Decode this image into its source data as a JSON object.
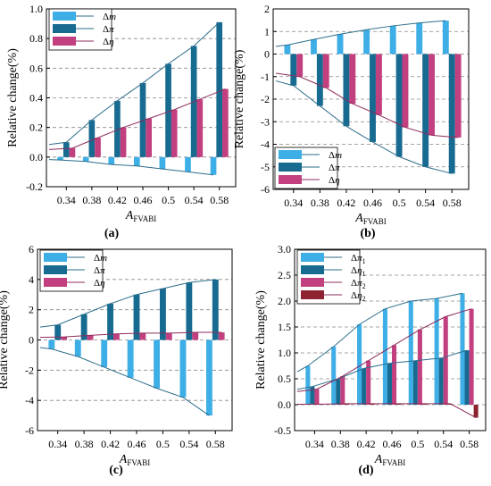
{
  "colors": {
    "dm": "#3eaee6",
    "dpi": "#176a90",
    "deta": "#c2407f",
    "deta2": "#8e2230",
    "dpi_line": "#2d6e8a",
    "deta_line": "#8d2c5c",
    "dm_line": "#2d6e8a"
  },
  "chart_data": [
    {
      "id": "a",
      "type": "bar",
      "panel_label": "(a)",
      "ylabel": "Relative change(%)",
      "xlabel_main": "A",
      "xlabel_sub": "FVABI",
      "categories": [
        "0.34",
        "0.38",
        "0.42",
        "0.46",
        "0.5",
        "0.54",
        "0.58"
      ],
      "ylim": [
        -0.2,
        1.0
      ],
      "yticks": [
        -0.2,
        0.0,
        0.2,
        0.4,
        0.6,
        0.8,
        1.0
      ],
      "ytick_labels": [
        "-0.2",
        "0.0",
        "0.2",
        "0.4",
        "0.6",
        "0.8",
        "1.0"
      ],
      "grid": "dashed",
      "legend": "top-left",
      "series": [
        {
          "name": "Δm",
          "sym": "m",
          "sub": "",
          "color": "dm",
          "line": "dm_line",
          "values": [
            -0.02,
            -0.03,
            -0.05,
            -0.06,
            -0.08,
            -0.1,
            -0.12
          ]
        },
        {
          "name": "Δπ",
          "sym": "π",
          "sub": "",
          "color": "dpi",
          "line": "dpi_line",
          "values": [
            0.1,
            0.25,
            0.38,
            0.5,
            0.63,
            0.75,
            0.91
          ]
        },
        {
          "name": "Δη",
          "sym": "η",
          "sub": "",
          "color": "deta",
          "line": "deta_line",
          "values": [
            0.06,
            0.13,
            0.2,
            0.26,
            0.32,
            0.39,
            0.46
          ]
        }
      ]
    },
    {
      "id": "b",
      "type": "bar",
      "panel_label": "(b)",
      "ylabel": "Relative change(%)",
      "xlabel_main": "A",
      "xlabel_sub": "FVABI",
      "categories": [
        "0.34",
        "0.38",
        "0.42",
        "0.46",
        "0.5",
        "0.54",
        "0.58"
      ],
      "ylim": [
        -6,
        2
      ],
      "yticks": [
        -6,
        -5,
        -4,
        -3,
        -2,
        -1,
        0,
        1,
        2
      ],
      "ytick_labels": [
        "-6",
        "-5",
        "-4",
        "-3",
        "-2",
        "-1",
        "0",
        "1",
        "2"
      ],
      "grid": "dashed",
      "legend": "bottom-left",
      "series": [
        {
          "name": "Δm",
          "sym": "m",
          "sub": "",
          "color": "dm",
          "line": "dm_line",
          "values": [
            0.4,
            0.65,
            0.88,
            1.08,
            1.25,
            1.38,
            1.48
          ]
        },
        {
          "name": "Δπ",
          "sym": "π",
          "sub": "",
          "color": "dpi",
          "line": "dpi_line",
          "values": [
            -1.4,
            -2.3,
            -3.2,
            -3.9,
            -4.55,
            -5.0,
            -5.3
          ]
        },
        {
          "name": "Δη",
          "sym": "η",
          "sub": "",
          "color": "deta",
          "line": "deta_line",
          "values": [
            -1.0,
            -1.5,
            -2.2,
            -2.7,
            -3.25,
            -3.6,
            -3.7
          ]
        }
      ]
    },
    {
      "id": "c",
      "type": "bar",
      "panel_label": "(c)",
      "ylabel": "Relative change(%)",
      "xlabel_main": "A",
      "xlabel_sub": "FVABI",
      "categories": [
        "0.34",
        "0.38",
        "0.42",
        "0.46",
        "0.5",
        "0.54",
        "0.58"
      ],
      "ylim": [
        -6,
        6
      ],
      "yticks": [
        -6,
        -4,
        -2,
        0,
        2,
        4,
        6
      ],
      "ytick_labels": [
        "-6",
        "-4",
        "-2",
        "0",
        "2",
        "4",
        "6"
      ],
      "grid": "dashed",
      "legend": "top-left",
      "series": [
        {
          "name": "Δm",
          "sym": "m",
          "sub": "",
          "color": "dm",
          "line": "dm_line",
          "values": [
            -0.6,
            -1.1,
            -1.8,
            -2.5,
            -3.2,
            -3.8,
            -5.0
          ]
        },
        {
          "name": "Δπ",
          "sym": "π",
          "sub": "",
          "color": "dpi",
          "line": "dpi_line",
          "values": [
            1.0,
            1.7,
            2.4,
            3.0,
            3.4,
            3.8,
            4.0
          ]
        },
        {
          "name": "Δη",
          "sym": "η",
          "sub": "",
          "color": "deta",
          "line": "deta_line",
          "values": [
            0.2,
            0.3,
            0.4,
            0.45,
            0.45,
            0.5,
            0.5
          ]
        }
      ]
    },
    {
      "id": "d",
      "type": "bar",
      "panel_label": "(d)",
      "ylabel": "Relative change(%)",
      "xlabel_main": "A",
      "xlabel_sub": "FVABI",
      "categories": [
        "0.34",
        "0.38",
        "0.42",
        "0.46",
        "0.5",
        "0.54",
        "0.58"
      ],
      "ylim": [
        -0.5,
        3.0
      ],
      "yticks": [
        -0.5,
        0.0,
        0.5,
        1.0,
        1.5,
        2.0,
        2.5,
        3.0
      ],
      "ytick_labels": [
        "-0.5",
        "0.0",
        "0.5",
        "1.0",
        "1.5",
        "2.0",
        "2.5",
        "3.0"
      ],
      "grid": "dashed",
      "legend": "top-left",
      "series": [
        {
          "name": "Δπ1",
          "sym": "π",
          "sub": "1",
          "color": "dm",
          "line": "dm_line",
          "values": [
            0.75,
            1.12,
            1.55,
            1.85,
            2.0,
            2.05,
            2.15
          ]
        },
        {
          "name": "Δη1",
          "sym": "η",
          "sub": "1",
          "color": "dpi",
          "line": "dpi_line",
          "values": [
            0.35,
            0.5,
            0.7,
            0.8,
            0.85,
            0.9,
            1.05
          ]
        },
        {
          "name": "Δπ2",
          "sym": "π",
          "sub": "2",
          "color": "deta",
          "line": "deta_line",
          "values": [
            0.3,
            0.55,
            0.85,
            1.15,
            1.45,
            1.7,
            1.85
          ]
        },
        {
          "name": "Δη2",
          "sym": "η",
          "sub": "2",
          "color": "deta2",
          "line": "deta_line",
          "values": [
            0.01,
            0.02,
            0.02,
            0.02,
            0.02,
            0.02,
            -0.25
          ]
        }
      ]
    }
  ]
}
